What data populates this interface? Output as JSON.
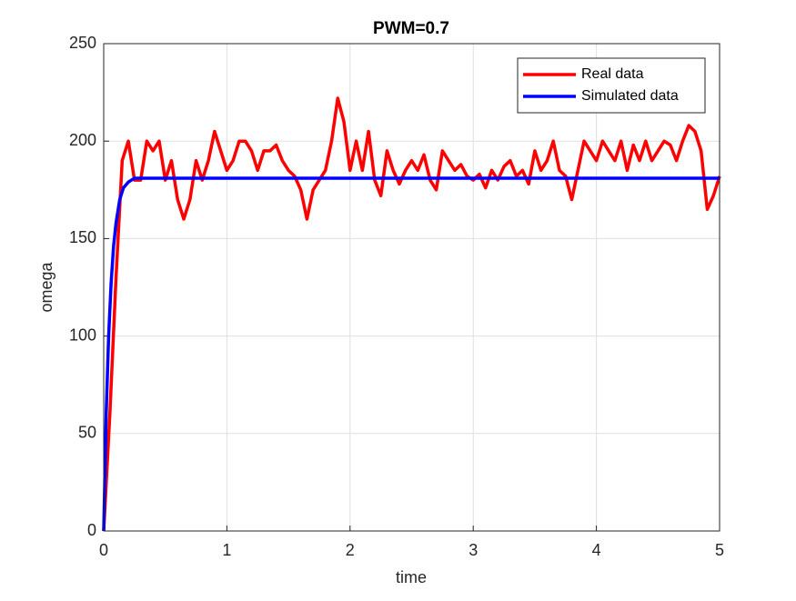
{
  "chart_data": {
    "type": "line",
    "title": "PWM=0.7",
    "x_label": "time",
    "y_label": "omega",
    "xlim": [
      0,
      5
    ],
    "xticks": [
      0,
      1,
      2,
      3,
      4,
      5
    ],
    "ylim": [
      0,
      250
    ],
    "yticks": [
      0,
      50,
      100,
      150,
      200,
      250
    ],
    "grid": true,
    "legend_position": "northeast",
    "series": [
      {
        "name": "Real data",
        "color": "#ff0000",
        "x": [
          0,
          0.05,
          0.1,
          0.15,
          0.2,
          0.25,
          0.3,
          0.35,
          0.4,
          0.45,
          0.5,
          0.55,
          0.6,
          0.65,
          0.7,
          0.75,
          0.8,
          0.85,
          0.9,
          0.95,
          1,
          1.05,
          1.1,
          1.15,
          1.2,
          1.25,
          1.3,
          1.35,
          1.4,
          1.45,
          1.5,
          1.55,
          1.6,
          1.65,
          1.7,
          1.75,
          1.8,
          1.85,
          1.9,
          1.95,
          2,
          2.05,
          2.1,
          2.15,
          2.2,
          2.25,
          2.3,
          2.35,
          2.4,
          2.45,
          2.5,
          2.55,
          2.6,
          2.65,
          2.7,
          2.75,
          2.8,
          2.85,
          2.9,
          2.95,
          3,
          3.05,
          3.1,
          3.15,
          3.2,
          3.25,
          3.3,
          3.35,
          3.4,
          3.45,
          3.5,
          3.55,
          3.6,
          3.65,
          3.7,
          3.75,
          3.8,
          3.85,
          3.9,
          3.95,
          4,
          4.05,
          4.1,
          4.15,
          4.2,
          4.25,
          4.3,
          4.35,
          4.4,
          4.45,
          4.5,
          4.55,
          4.6,
          4.65,
          4.7,
          4.75,
          4.8,
          4.85,
          4.9,
          4.95,
          5
        ],
        "values": [
          0,
          60,
          130,
          190,
          200,
          180,
          180,
          200,
          195,
          200,
          180,
          190,
          170,
          160,
          170,
          190,
          180,
          190,
          205,
          195,
          185,
          190,
          200,
          200,
          195,
          185,
          195,
          195,
          198,
          190,
          185,
          182,
          175,
          160,
          175,
          180,
          185,
          200,
          222,
          210,
          185,
          200,
          185,
          205,
          180,
          172,
          195,
          185,
          178,
          185,
          190,
          185,
          193,
          180,
          175,
          195,
          190,
          185,
          188,
          182,
          180,
          183,
          176,
          185,
          180,
          187,
          190,
          182,
          185,
          178,
          195,
          185,
          190,
          200,
          185,
          182,
          170,
          185,
          200,
          195,
          190,
          200,
          195,
          190,
          200,
          185,
          198,
          190,
          200,
          190,
          195,
          200,
          198,
          190,
          200,
          208,
          205,
          195,
          165,
          172,
          182
        ]
      },
      {
        "name": "Simulated data",
        "color": "#0000ff",
        "x": [
          0,
          0.02,
          0.04,
          0.06,
          0.08,
          0.1,
          0.13,
          0.16,
          0.2,
          0.25,
          5
        ],
        "values": [
          0,
          60,
          100,
          127,
          146,
          158,
          170,
          176,
          179,
          181,
          181
        ]
      }
    ]
  }
}
